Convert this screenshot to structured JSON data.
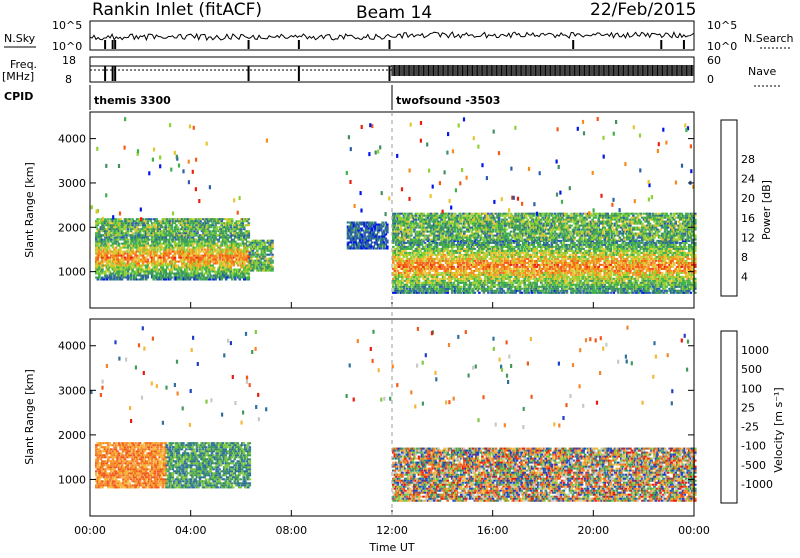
{
  "header": {
    "station": "Rankin Inlet (fitACF)",
    "beam": "Beam 14",
    "date": "22/Feb/2015"
  },
  "top_panels": {
    "nsky_label": "N.Sky",
    "nsearch_label": "N.Search",
    "nsky_ticks": [
      "10^5",
      "10^0"
    ],
    "nsearch_ticks": [
      "10^5",
      "10^0"
    ],
    "freq_label": "Freq.",
    "freq_unit": "[MHz]",
    "freq_ticks": [
      "18",
      "8"
    ],
    "nave_label": "Nave",
    "nave_ticks": [
      "60",
      "0"
    ],
    "cpid_label": "CPID",
    "cpid_entries": [
      {
        "name": "themis 3300",
        "start_hour": 0
      },
      {
        "name": "twofsound -3503",
        "start_hour": 12
      }
    ]
  },
  "chart_data": [
    {
      "type": "heatmap",
      "name": "power",
      "xlabel": "",
      "ylabel": "Slant Range [km]",
      "xlim": [
        0,
        24
      ],
      "ylim": [
        180,
        4600
      ],
      "yticks": [
        "1000",
        "2000",
        "3000",
        "4000"
      ],
      "colorbar": {
        "label": "Power [dB]",
        "ticks": [
          "4",
          "8",
          "12",
          "16",
          "20",
          "24",
          "28"
        ],
        "colors": [
          "#0015e8",
          "#2a5ea9",
          "#3f8f62",
          "#3eb14a",
          "#8fd032",
          "#e8c42e",
          "#f58a1e",
          "#f45a16",
          "#e8200c"
        ]
      },
      "regions": [
        {
          "t": [
            0.2,
            6.3
          ],
          "r": [
            800,
            1800
          ],
          "level": "high"
        },
        {
          "t": [
            0.2,
            6.3
          ],
          "r": [
            1800,
            2200
          ],
          "level": "medium"
        },
        {
          "t": [
            6.3,
            7.2
          ],
          "r": [
            1000,
            1700
          ],
          "level": "medium"
        },
        {
          "t": [
            10.2,
            11.8
          ],
          "r": [
            1500,
            2100
          ],
          "level": "low"
        },
        {
          "t": [
            12.0,
            24.0
          ],
          "r": [
            500,
            1700
          ],
          "level": "high"
        },
        {
          "t": [
            12.0,
            24.0
          ],
          "r": [
            1700,
            2300
          ],
          "level": "medium"
        }
      ]
    },
    {
      "type": "heatmap",
      "name": "velocity",
      "xlabel": "Time UT",
      "ylabel": "Slant Range [km]",
      "xlim": [
        0,
        24
      ],
      "ylim": [
        180,
        4600
      ],
      "xticks": [
        "00:00",
        "04:00",
        "08:00",
        "12:00",
        "16:00",
        "20:00",
        "00:00"
      ],
      "yticks": [
        "1000",
        "2000",
        "3000",
        "4000"
      ],
      "colorbar": {
        "label": "Velocity [m s⁻¹]",
        "ticks": [
          "1000",
          "500",
          "100",
          "25",
          "-25",
          "-100",
          "-500",
          "-1000"
        ],
        "colors": [
          "#1f3fc8",
          "#2e6f9e",
          "#3f9a5c",
          "#7fc93e",
          "#c8c8c8",
          "#f5b63a",
          "#f5852a",
          "#f25a1c",
          "#e81c0c"
        ]
      },
      "regions": [
        {
          "t": [
            0.2,
            3.0
          ],
          "r": [
            800,
            1800
          ],
          "velocity": "negative"
        },
        {
          "t": [
            3.0,
            6.3
          ],
          "r": [
            800,
            1800
          ],
          "velocity": "positive"
        },
        {
          "t": [
            12.0,
            24.0
          ],
          "r": [
            500,
            1700
          ],
          "velocity": "mixed"
        }
      ]
    }
  ]
}
